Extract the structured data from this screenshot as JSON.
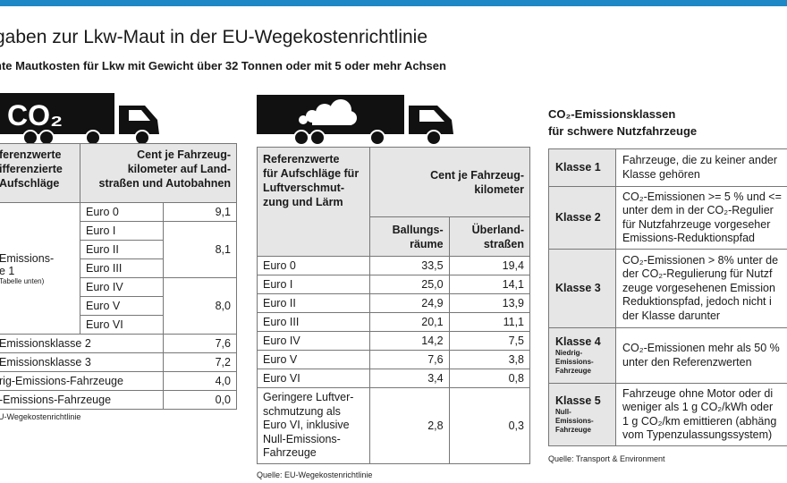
{
  "header": {
    "title": "gaben zur Lkw-Maut in der EU-Wegekostenrichtlinie",
    "subtitle": "nte Mautkosten für Lkw mit Gewicht über 32 Tonnen oder mit 5 oder mehr Achsen"
  },
  "truck1": {
    "label": "CO₂"
  },
  "table1": {
    "head_left": [
      "ferenzwerte",
      "ifferenzierte",
      "Aufschläge"
    ],
    "head_right": [
      "Cent je Fahrzeug-",
      "kilometer auf Land-",
      "straßen und Autobahnen"
    ],
    "group_label": "Emissions-",
    "group_label2": "e 1",
    "group_note": "Tabelle unten)",
    "euro_rows": [
      {
        "label": "Euro 0",
        "value": "9,1"
      },
      {
        "label": "Euro I"
      },
      {
        "label": "Euro II",
        "value": "8,1"
      },
      {
        "label": "Euro III"
      },
      {
        "label": "Euro IV"
      },
      {
        "label": "Euro V",
        "value": "8,0"
      },
      {
        "label": "Euro VI"
      }
    ],
    "class_rows": [
      {
        "label": "Emissionsklasse 2",
        "value": "7,6"
      },
      {
        "label": "Emissionsklasse 3",
        "value": "7,2"
      },
      {
        "label": "rig-Emissions-Fahrzeuge",
        "value": "4,0"
      },
      {
        "label": "-Emissions-Fahrzeuge",
        "value": "0,0"
      }
    ],
    "source": "U-Wegekostenrichtlinie"
  },
  "table2": {
    "head_left": [
      "Referenzwerte",
      "für Aufschläge für",
      "Luftverschmut-",
      "zung und Lärm"
    ],
    "head_right": [
      "Cent je Fahrzeug-",
      "kilometer"
    ],
    "col1": [
      "Ballungs-",
      "räume"
    ],
    "col2": [
      "Überland-",
      "straßen"
    ],
    "rows": [
      {
        "label": "Euro 0",
        "a": "33,5",
        "b": "19,4"
      },
      {
        "label": "Euro I",
        "a": "25,0",
        "b": "14,1"
      },
      {
        "label": "Euro II",
        "a": "24,9",
        "b": "13,9"
      },
      {
        "label": "Euro III",
        "a": "20,1",
        "b": "11,1"
      },
      {
        "label": "Euro IV",
        "a": "14,2",
        "b": "7,5"
      },
      {
        "label": "Euro V",
        "a": "7,6",
        "b": "3,8"
      },
      {
        "label": "Euro VI",
        "a": "3,4",
        "b": "0,8"
      }
    ],
    "last_row": {
      "label": [
        "Geringere Luftver-",
        "schmutzung als",
        "Euro VI, inklusive",
        "Null-Emissions-",
        "Fahrzeuge"
      ],
      "a": "2,8",
      "b": "0,3"
    },
    "source": "Quelle: EU-Wegekostenrichtlinie"
  },
  "table3": {
    "title": [
      "CO₂-Emissionsklassen",
      "für schwere Nutzfahrzeuge"
    ],
    "rows": [
      {
        "k": "Klasse 1",
        "d": [
          "Fahrzeuge, die zu keiner ander",
          "Klasse gehören"
        ]
      },
      {
        "k": "Klasse 2",
        "d": [
          "CO₂-Emissionen >= 5 % und <=",
          "unter dem in der CO₂-Regulier",
          "für Nutzfahrzeuge vorgeseher",
          "Emissions-Reduktionspfad"
        ]
      },
      {
        "k": "Klasse 3",
        "d": [
          "CO₂-Emissionen > 8% unter de",
          "der CO₂-Regulierung für Nutzf",
          "zeuge vorgesehenen Emission",
          "Reduktionspfad, jedoch nicht i",
          "der Klasse darunter"
        ]
      },
      {
        "k": "Klasse 4",
        "sub": [
          "Niedrig-",
          "Emissions-",
          "Fahrzeuge"
        ],
        "d": [
          "CO₂-Emissionen mehr als 50 %",
          "unter den Referenzwerten"
        ]
      },
      {
        "k": "Klasse 5",
        "sub": [
          "Null-",
          "Emissions-",
          "Fahrzeuge"
        ],
        "d": [
          "Fahrzeuge ohne Motor oder di",
          "weniger als 1 g CO₂/kWh oder",
          "1 g CO₂/km emittieren (abhäng",
          "vom Typenzulassungssystem)"
        ]
      }
    ],
    "source": "Quelle: Transport & Environment"
  }
}
